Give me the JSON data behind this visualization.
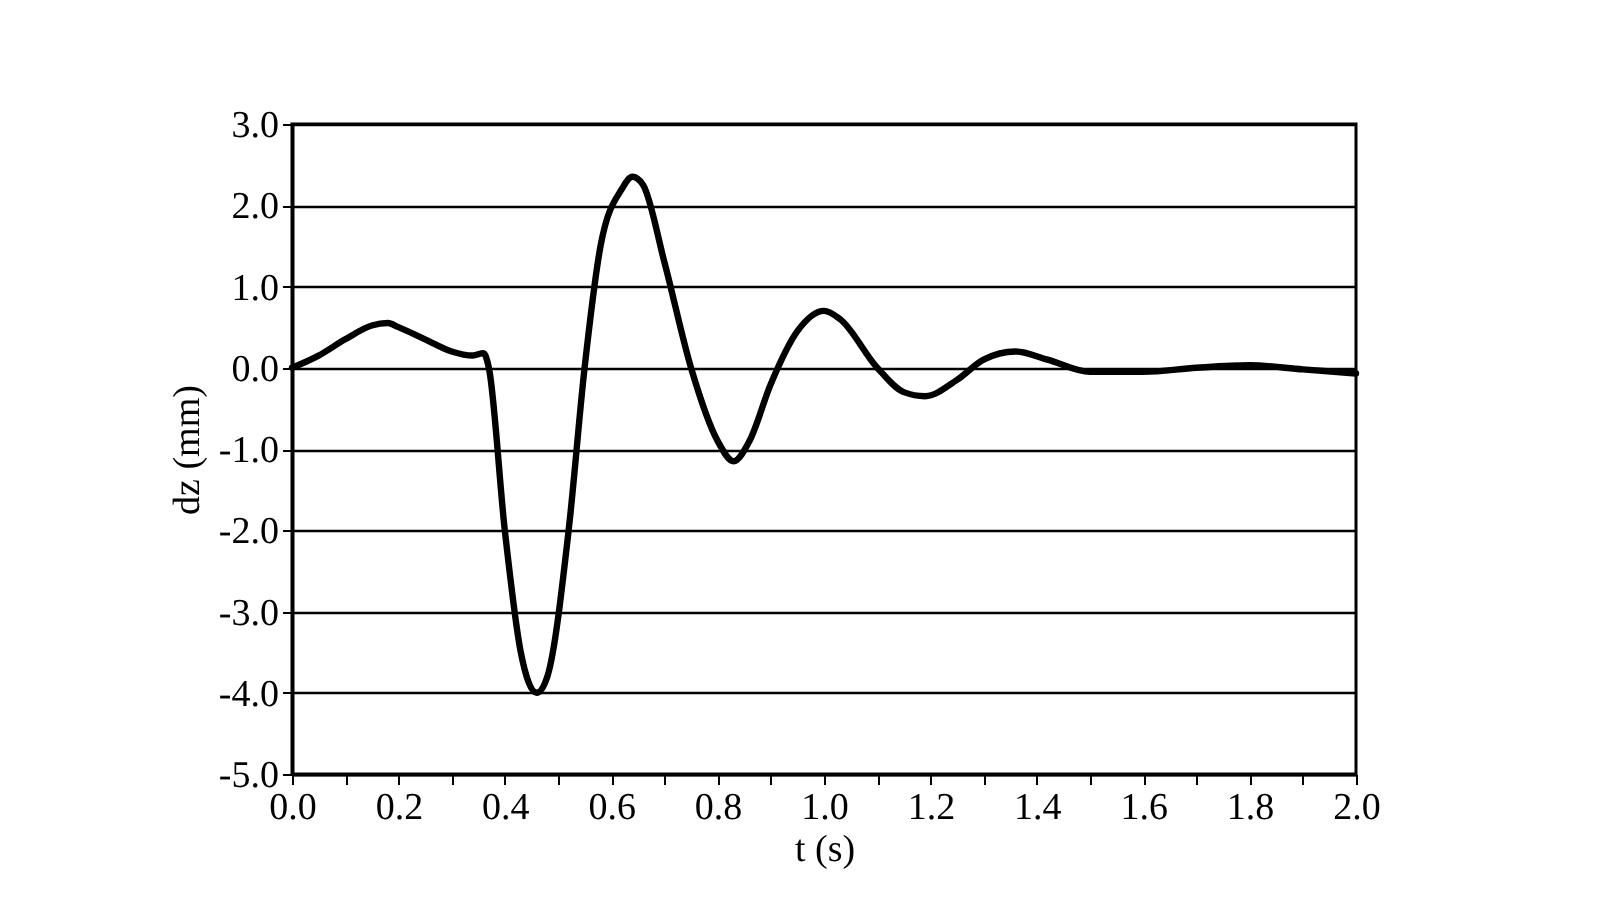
{
  "chart_data": {
    "type": "line",
    "xlabel": "t (s)",
    "ylabel": "dz (mm)",
    "x": [
      0,
      0.05,
      0.1,
      0.15,
      0.18,
      0.2,
      0.25,
      0.3,
      0.34,
      0.36,
      0.37,
      0.4,
      0.43,
      0.46,
      0.48,
      0.52,
      0.55,
      0.58,
      0.62,
      0.64,
      0.66,
      0.7,
      0.75,
      0.8,
      0.83,
      0.86,
      0.9,
      0.95,
      1.0,
      1.03,
      1.1,
      1.15,
      1.19,
      1.25,
      1.3,
      1.36,
      1.42,
      1.5,
      1.6,
      1.7,
      1.8,
      1.9,
      2.0
    ],
    "series": [
      {
        "color": "#000000",
        "values": [
          0,
          0.15,
          0.35,
          0.52,
          0.55,
          0.5,
          0.35,
          0.2,
          0.15,
          0.18,
          0.0,
          -2.0,
          -3.5,
          -4.0,
          -3.8,
          -2.0,
          0.0,
          1.5,
          2.2,
          2.35,
          2.25,
          1.3,
          0.0,
          -0.9,
          -1.15,
          -0.9,
          -0.2,
          0.45,
          0.7,
          0.6,
          0.0,
          -0.3,
          -0.35,
          -0.15,
          0.1,
          0.2,
          0.1,
          -0.05,
          -0.05,
          0.0,
          0.03,
          -0.02,
          -0.07
        ]
      }
    ],
    "xlim": [
      0,
      2.0
    ],
    "xticks": [
      {
        "value": 0,
        "label": "0.0"
      },
      {
        "value": 0.1,
        "label": null
      },
      {
        "value": 0.2,
        "label": "0.2"
      },
      {
        "value": 0.3,
        "label": null
      },
      {
        "value": 0.4,
        "label": "0.4"
      },
      {
        "value": 0.5,
        "label": null
      },
      {
        "value": 0.6,
        "label": "0.6"
      },
      {
        "value": 0.7,
        "label": null
      },
      {
        "value": 0.8,
        "label": "0.8"
      },
      {
        "value": 0.9,
        "label": null
      },
      {
        "value": 1.0,
        "label": "1.0"
      },
      {
        "value": 1.1,
        "label": null
      },
      {
        "value": 1.2,
        "label": "1.2"
      },
      {
        "value": 1.3,
        "label": null
      },
      {
        "value": 1.4,
        "label": "1.4"
      },
      {
        "value": 1.5,
        "label": null
      },
      {
        "value": 1.6,
        "label": "1.6"
      },
      {
        "value": 1.7,
        "label": null
      },
      {
        "value": 1.8,
        "label": "1.8"
      },
      {
        "value": 1.9,
        "label": null
      },
      {
        "value": 2.0,
        "label": "2.0"
      }
    ],
    "ylim": [
      -5.0,
      3.0
    ],
    "yticks": [
      {
        "value": -5,
        "label": "-5.0"
      },
      {
        "value": -4,
        "label": "-4.0"
      },
      {
        "value": -3,
        "label": "-3.0"
      },
      {
        "value": -2,
        "label": "-2.0"
      },
      {
        "value": -1,
        "label": "-1.0"
      },
      {
        "value": 0,
        "label": "0.0"
      },
      {
        "value": 1,
        "label": "1.0"
      },
      {
        "value": 2,
        "label": "2.0"
      },
      {
        "value": 3,
        "label": "3.0"
      }
    ],
    "grid": "y",
    "marker": "none",
    "line_style": "solid"
  }
}
